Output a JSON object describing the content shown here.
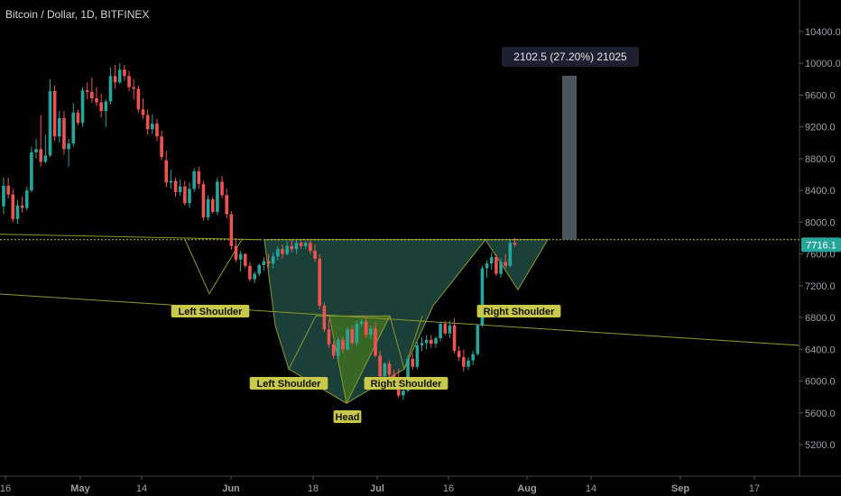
{
  "header": {
    "symbol_title": "Bitcoin / Dollar, 1D, BITFINEX"
  },
  "colors": {
    "background": "#000000",
    "bull_candle": "#26a69a",
    "bear_candle": "#ef5350",
    "pattern_big_fill": "#1f4b43",
    "pattern_small_fill": "#3c6b23",
    "trendline": "#8c9a2c",
    "neckline": "#c8c85a",
    "label_bg": "#c8c84a",
    "measure_bar": "#4a5560",
    "price_tag": "#26a69a"
  },
  "chart_data": {
    "type": "candlestick",
    "title": "Bitcoin / Dollar, 1D, BITFINEX",
    "y_axis": {
      "min": 4800,
      "max": 10800,
      "ticks": [
        "10400.0",
        "10000.0",
        "9600.0",
        "9200.0",
        "8800.0",
        "8400.0",
        "8000.0",
        "7600.0",
        "7200.0",
        "6800.0",
        "6400.0",
        "6000.0",
        "5600.0",
        "5200.0"
      ]
    },
    "x_axis": {
      "ticks": [
        "16",
        "May",
        "14",
        "Jun",
        "18",
        "Jul",
        "16",
        "Aug",
        "14",
        "Sep",
        "17"
      ]
    },
    "last_price": "7716.1",
    "neckline_price": 7780,
    "candles": [
      [
        8200,
        8560,
        8100,
        8460
      ],
      [
        8460,
        8560,
        8300,
        8350
      ],
      [
        8350,
        8420,
        8000,
        8040
      ],
      [
        8040,
        8280,
        7980,
        8210
      ],
      [
        8210,
        8320,
        8120,
        8180
      ],
      [
        8180,
        8450,
        8150,
        8400
      ],
      [
        8400,
        8950,
        8380,
        8880
      ],
      [
        8880,
        9050,
        8800,
        8920
      ],
      [
        8920,
        9350,
        8700,
        8760
      ],
      [
        8760,
        9100,
        8740,
        8840
      ],
      [
        8840,
        9800,
        8820,
        9650
      ],
      [
        9650,
        9720,
        9020,
        9080
      ],
      [
        9080,
        9400,
        9000,
        9310
      ],
      [
        9310,
        9400,
        8850,
        8920
      ],
      [
        8920,
        9050,
        8700,
        8990
      ],
      [
        8990,
        9500,
        8950,
        9380
      ],
      [
        9380,
        9420,
        9220,
        9250
      ],
      [
        9250,
        9700,
        9200,
        9660
      ],
      [
        9660,
        9760,
        9550,
        9640
      ],
      [
        9640,
        9820,
        9500,
        9560
      ],
      [
        9560,
        9700,
        9460,
        9510
      ],
      [
        9510,
        9620,
        9320,
        9400
      ],
      [
        9400,
        9550,
        9200,
        9520
      ],
      [
        9520,
        9950,
        9480,
        9840
      ],
      [
        9840,
        9980,
        9680,
        9760
      ],
      [
        9760,
        10000,
        9740,
        9920
      ],
      [
        9920,
        9980,
        9780,
        9840
      ],
      [
        9840,
        9900,
        9650,
        9700
      ],
      [
        9700,
        9800,
        9550,
        9680
      ],
      [
        9680,
        9720,
        9380,
        9420
      ],
      [
        9420,
        9560,
        9300,
        9350
      ],
      [
        9350,
        9420,
        9100,
        9170
      ],
      [
        9170,
        9360,
        9110,
        9240
      ],
      [
        9240,
        9300,
        9020,
        9080
      ],
      [
        9080,
        9150,
        8780,
        8820
      ],
      [
        8780,
        8900,
        8440,
        8500
      ],
      [
        8500,
        8660,
        8420,
        8520
      ],
      [
        8520,
        8560,
        8320,
        8380
      ],
      [
        8380,
        8540,
        8330,
        8450
      ],
      [
        8450,
        8520,
        8210,
        8240
      ],
      [
        8240,
        8500,
        8180,
        8420
      ],
      [
        8420,
        8680,
        8380,
        8640
      ],
      [
        8640,
        8700,
        8420,
        8480
      ],
      [
        8480,
        8520,
        8020,
        8060
      ],
      [
        8060,
        8340,
        8020,
        8290
      ],
      [
        8290,
        8320,
        8110,
        8130
      ],
      [
        8130,
        8560,
        8090,
        8510
      ],
      [
        8510,
        8580,
        8300,
        8340
      ],
      [
        8340,
        8420,
        8050,
        8100
      ],
      [
        8100,
        8140,
        7650,
        7700
      ],
      [
        7700,
        7800,
        7500,
        7530
      ],
      [
        7530,
        7640,
        7380,
        7600
      ],
      [
        7600,
        7610,
        7420,
        7450
      ],
      [
        7450,
        7500,
        7250,
        7280
      ],
      [
        7280,
        7380,
        7230,
        7350
      ],
      [
        7350,
        7480,
        7320,
        7460
      ],
      [
        7460,
        7560,
        7390,
        7510
      ],
      [
        7510,
        7600,
        7420,
        7480
      ],
      [
        7480,
        7620,
        7420,
        7570
      ],
      [
        7570,
        7700,
        7520,
        7660
      ],
      [
        7660,
        7720,
        7540,
        7600
      ],
      [
        7600,
        7760,
        7580,
        7700
      ],
      [
        7700,
        7790,
        7620,
        7660
      ],
      [
        7660,
        7780,
        7600,
        7740
      ],
      [
        7740,
        7770,
        7660,
        7700
      ],
      [
        7700,
        7760,
        7660,
        7740
      ],
      [
        7740,
        7790,
        7600,
        7640
      ],
      [
        7640,
        7720,
        7500,
        7540
      ],
      [
        7540,
        7600,
        6900,
        6950
      ],
      [
        6950,
        6990,
        6620,
        6650
      ],
      [
        6650,
        6780,
        6420,
        6460
      ],
      [
        6460,
        6500,
        6280,
        6320
      ],
      [
        6320,
        6560,
        6260,
        6520
      ],
      [
        6520,
        6560,
        6350,
        6400
      ],
      [
        6400,
        6680,
        6380,
        6650
      ],
      [
        6650,
        6700,
        6460,
        6480
      ],
      [
        6480,
        6760,
        6440,
        6720
      ],
      [
        6720,
        6780,
        6680,
        6750
      ],
      [
        6750,
        6820,
        6540,
        6580
      ],
      [
        6580,
        6700,
        6520,
        6660
      ],
      [
        6660,
        6740,
        6300,
        6320
      ],
      [
        6320,
        6380,
        6020,
        6060
      ],
      [
        6060,
        6240,
        6040,
        6220
      ],
      [
        6220,
        6260,
        6040,
        6080
      ],
      [
        6080,
        6140,
        5980,
        6040
      ],
      [
        6040,
        6160,
        5790,
        5820
      ],
      [
        5820,
        5960,
        5760,
        5880
      ],
      [
        5880,
        6320,
        5860,
        6280
      ],
      [
        6280,
        6350,
        6140,
        6180
      ],
      [
        6180,
        6500,
        6150,
        6450
      ],
      [
        6450,
        6550,
        6380,
        6480
      ],
      [
        6480,
        6580,
        6400,
        6520
      ],
      [
        6520,
        6580,
        6420,
        6470
      ],
      [
        6470,
        6560,
        6420,
        6540
      ],
      [
        6540,
        6750,
        6500,
        6720
      ],
      [
        6720,
        6760,
        6580,
        6600
      ],
      [
        6600,
        6760,
        6540,
        6700
      ],
      [
        6700,
        6790,
        6350,
        6380
      ],
      [
        6380,
        6440,
        6250,
        6300
      ],
      [
        6300,
        6400,
        6120,
        6180
      ],
      [
        6180,
        6300,
        6140,
        6260
      ],
      [
        6260,
        6380,
        6200,
        6340
      ],
      [
        6340,
        6720,
        6320,
        6700
      ],
      [
        6700,
        7450,
        6680,
        7420
      ],
      [
        7420,
        7520,
        7300,
        7480
      ],
      [
        7480,
        7620,
        7400,
        7560
      ],
      [
        7560,
        7600,
        7320,
        7350
      ],
      [
        7350,
        7550,
        7300,
        7500
      ],
      [
        7500,
        7600,
        7420,
        7450
      ],
      [
        7450,
        7780,
        7430,
        7740
      ],
      [
        7740,
        7800,
        7690,
        7716.1
      ]
    ],
    "labels": [
      {
        "text": "Left Shoulder"
      },
      {
        "text": "Right Shoulder"
      },
      {
        "text": "Left Shoulder"
      },
      {
        "text": "Head"
      },
      {
        "text": "Right Shoulder"
      }
    ],
    "measure": {
      "text": "2102.5 (27.20%) 21025"
    }
  }
}
